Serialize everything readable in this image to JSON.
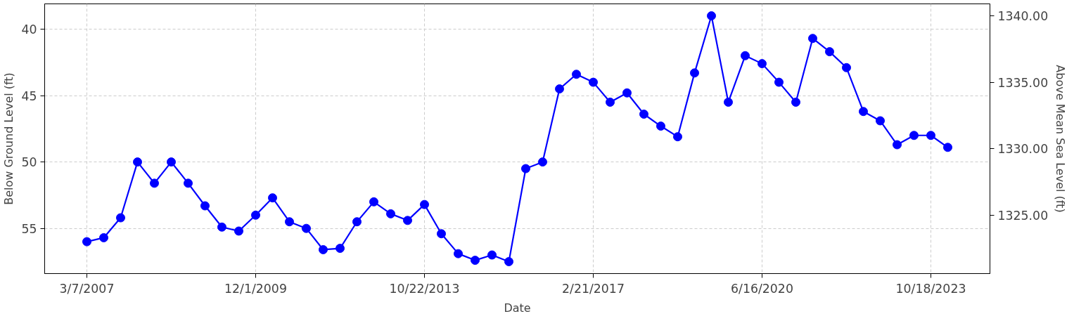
{
  "chart_data": {
    "type": "line",
    "xlabel": "Date",
    "ylabel": "Below Ground Level (ft)",
    "y2label": "Above Mean Sea Level (ft)",
    "categories": [
      "3/7/2007",
      null,
      null,
      null,
      null,
      null,
      null,
      null,
      null,
      null,
      "12/1/2009",
      null,
      null,
      null,
      null,
      null,
      null,
      null,
      null,
      null,
      "10/22/2013",
      null,
      null,
      null,
      null,
      null,
      null,
      null,
      null,
      null,
      "2/21/2017",
      null,
      null,
      null,
      null,
      null,
      null,
      null,
      null,
      null,
      "6/16/2020",
      null,
      null,
      null,
      null,
      null,
      null,
      null,
      null,
      null,
      "10/18/2023",
      null
    ],
    "series": [
      {
        "color": "#0000ff",
        "values": [
          56.0,
          55.7,
          54.2,
          50.0,
          51.6,
          50.0,
          51.6,
          53.3,
          54.9,
          55.2,
          54.0,
          52.7,
          54.5,
          55.0,
          56.6,
          56.5,
          54.5,
          53.0,
          53.9,
          54.4,
          53.2,
          55.4,
          56.9,
          57.4,
          57.0,
          57.5,
          50.5,
          50.0,
          44.5,
          43.4,
          44.0,
          45.5,
          44.8,
          46.4,
          47.3,
          48.1,
          43.3,
          39.0,
          45.5,
          42.0,
          42.6,
          44.0,
          45.5,
          40.7,
          41.7,
          42.9,
          46.2,
          46.9,
          48.7,
          48.0,
          48.0,
          48.9
        ]
      }
    ],
    "ylim": [
      58.4,
      38.1
    ],
    "yticks": [
      40,
      45,
      50,
      55
    ],
    "y2lim": [
      1320.6,
      1340.9
    ],
    "y2ticks": [
      {
        "value": 1325,
        "label": "1325.00"
      },
      {
        "value": 1330,
        "label": "1330.00"
      },
      {
        "value": 1335,
        "label": "1335.00"
      },
      {
        "value": 1340,
        "label": "1340.00"
      }
    ],
    "grid": true,
    "marker": "circle",
    "line_style": "solid"
  }
}
